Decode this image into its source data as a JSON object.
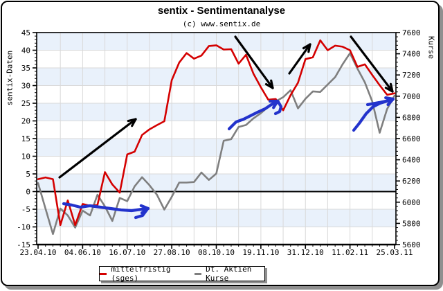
{
  "page": {
    "title": "sentix - Sentimentanalyse",
    "subtitle": "(c) www.sentix.de"
  },
  "colors": {
    "red_series": "#d40000",
    "gray_series": "#7f7f7f",
    "blue_annotation": "#2333cc",
    "band_blue": "#e9f1fb",
    "grid": "#d9d9d9",
    "axis": "#000000",
    "shadow": "#8f8f8f",
    "background": "#ffffff"
  },
  "legend": {
    "items": [
      {
        "label": "mittelfristig (sges)",
        "color": "#d40000"
      },
      {
        "label": "Dt. Aktien Kurse",
        "color": "#7f7f7f"
      }
    ]
  },
  "chart_data": {
    "type": "line",
    "title": "sentix - Sentimentanalyse",
    "subtitle": "(c) www.sentix.de",
    "x_axis": {
      "tick_labels": [
        "23.04.10",
        "04.06.10",
        "16.07.10",
        "27.08.10",
        "08.10.10",
        "19.11.10",
        "31.12.10",
        "11.02.11",
        "25.03.11"
      ],
      "points_per_tick": 6,
      "note": "weekly data points, 49 weeks total"
    },
    "y_left_axis": {
      "label": "sentix-Daten",
      "min": -15,
      "max": 45,
      "ticks": [
        45,
        40,
        35,
        30,
        25,
        20,
        15,
        10,
        5,
        0,
        -5,
        -10,
        -15
      ],
      "minor_step": 1
    },
    "y_right_axis": {
      "label": "Kurse",
      "min": 5600,
      "max": 7600,
      "ticks": [
        7600,
        7400,
        7200,
        7000,
        6800,
        6600,
        6400,
        6200,
        6000,
        5800,
        5600
      ],
      "minor_step": 40
    },
    "background_bands": "alternating light-blue/white horizontal bands every 5 left-axis units, blue band at top (45-40)",
    "zero_line": 0,
    "series": [
      {
        "name": "mittelfristig (sges)",
        "axis": "left",
        "color": "#d40000",
        "values": [
          3.5,
          4,
          3.5,
          -9.5,
          -2.5,
          -9.5,
          -3.5,
          -4,
          -3.8,
          5.5,
          2,
          -0.3,
          10.5,
          11.3,
          16,
          17.6,
          18.8,
          19.9,
          31.5,
          36.5,
          39.2,
          37.6,
          38.5,
          41.2,
          41.4,
          40.2,
          40.3,
          36.2,
          38.7,
          33.4,
          29.5,
          26,
          26.2,
          23,
          27.3,
          30.8,
          37.5,
          38,
          42.8,
          40,
          41.3,
          41,
          40,
          35.3,
          36,
          33,
          30.1,
          27.4,
          27.8
        ]
      },
      {
        "name": "Dt. Aktien Kurse",
        "axis": "right",
        "color": "#7f7f7f",
        "values": [
          6180,
          5940,
          5700,
          5940,
          5875,
          5760,
          5920,
          5875,
          6070,
          5960,
          5823,
          6040,
          6010,
          6150,
          6235,
          6160,
          6070,
          5930,
          6050,
          6185,
          6185,
          6190,
          6280,
          6210,
          6270,
          6580,
          6595,
          6710,
          6728,
          6790,
          6840,
          6900,
          6950,
          6990,
          7056,
          6885,
          6975,
          7045,
          7040,
          7110,
          7180,
          7300,
          7405,
          7260,
          7130,
          6950,
          6655,
          6880,
          7005
        ]
      }
    ],
    "annotations": {
      "black_arrows": [
        {
          "from": [
            86,
            256
          ],
          "to": [
            196,
            172
          ]
        },
        {
          "from": [
            340,
            53
          ],
          "to": [
            394,
            127
          ]
        },
        {
          "from": [
            418,
            106
          ],
          "to": [
            448,
            64
          ]
        },
        {
          "from": [
            507,
            53
          ],
          "to": [
            567,
            132
          ]
        }
      ],
      "blue_strokes": [
        {
          "points": [
            [
              92,
              294
            ],
            [
              104,
              296
            ],
            [
              116,
              299
            ],
            [
              130,
              297
            ],
            [
              145,
              299
            ],
            [
              160,
              301
            ],
            [
              175,
              303
            ],
            [
              190,
              304
            ],
            [
              205,
              302
            ],
            [
              214,
              301
            ]
          ],
          "arrowhead": true
        },
        {
          "points": [
            [
              212,
              303
            ],
            [
              206,
              311
            ],
            [
              196,
              314
            ]
          ],
          "arrowhead": false
        },
        {
          "points": [
            [
              331,
              186
            ],
            [
              341,
              176
            ],
            [
              352,
              172
            ],
            [
              362,
              167
            ],
            [
              372,
              162
            ],
            [
              383,
              157
            ],
            [
              392,
              151
            ],
            [
              401,
              146
            ]
          ],
          "arrowhead": true
        },
        {
          "points": [
            [
              402,
              147
            ],
            [
              406,
              154
            ],
            [
              404,
              161
            ],
            [
              398,
              164
            ]
          ],
          "arrowhead": false
        },
        {
          "points": [
            [
              511,
              188
            ],
            [
              519,
              178
            ],
            [
              529,
              164
            ],
            [
              539,
              154
            ],
            [
              549,
              149
            ],
            [
              559,
              146
            ],
            [
              568,
              143
            ]
          ],
          "arrowhead": true
        },
        {
          "points": [
            [
              531,
              151
            ],
            [
              548,
              148
            ],
            [
              566,
              144
            ]
          ],
          "arrowhead": false
        }
      ]
    }
  }
}
